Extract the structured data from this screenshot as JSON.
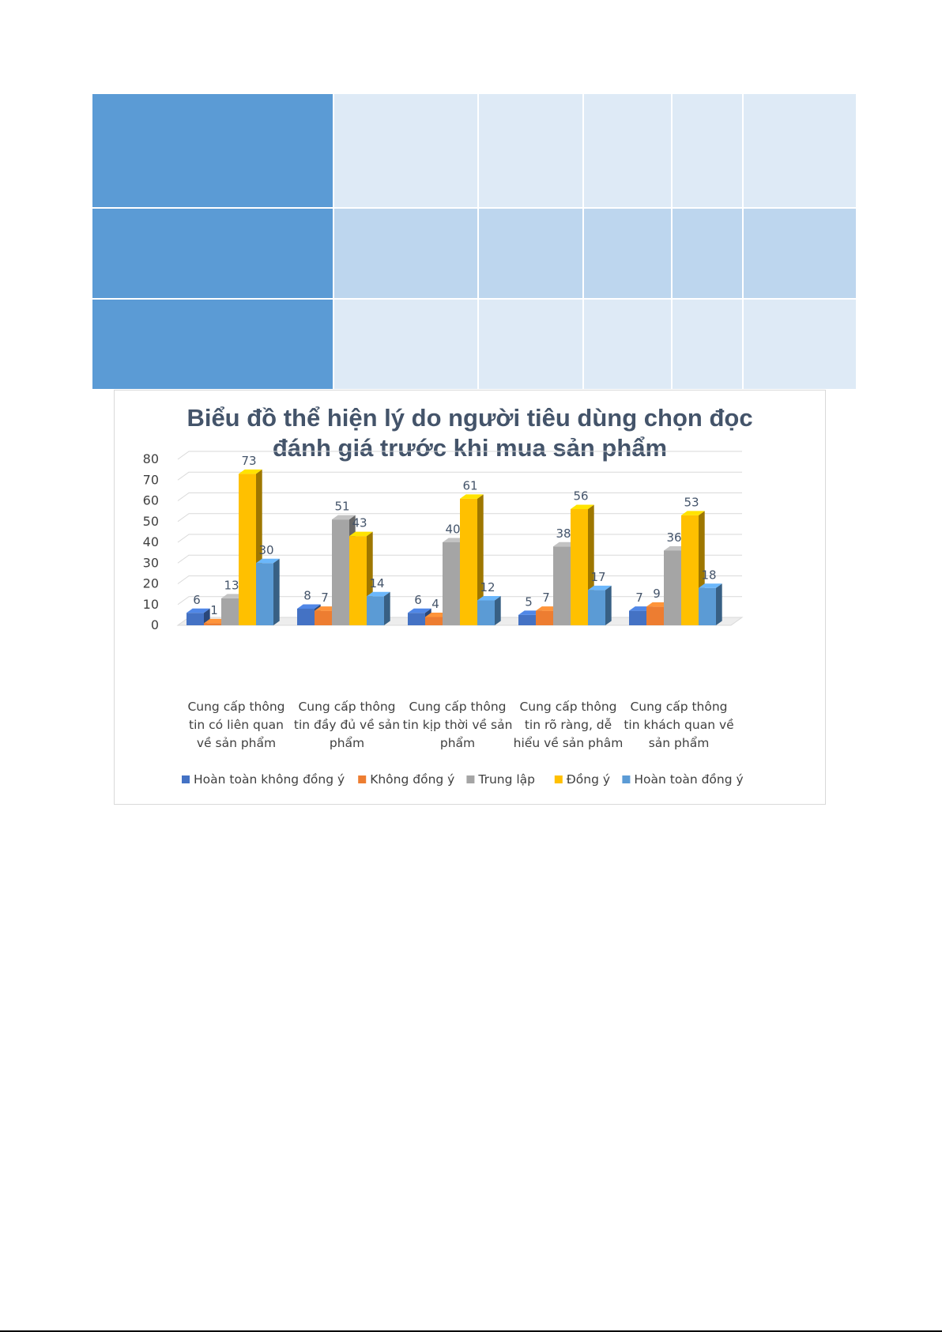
{
  "table": {
    "rows": 3,
    "columns": 6
  },
  "chart_data": {
    "type": "bar",
    "style": "3d-clustered-column",
    "title": "Biểu đồ thể hiện lý do người tiêu dùng chọn đọc đánh giá trước khi mua sản phẩm",
    "categories": [
      [
        "Cung cấp thông",
        "tin có liên quan",
        "về sản phẩm"
      ],
      [
        "Cung cấp thông",
        "tin đầy đủ về sản",
        "phẩm"
      ],
      [
        "Cung cấp thông",
        "tin kịp thời về sản",
        "phẩm"
      ],
      [
        "Cung cấp thông",
        "tin rõ ràng, dễ",
        "hiểu về sản phâm"
      ],
      [
        "Cung cấp thông",
        "tin khách quan về",
        "sản phẩm"
      ]
    ],
    "series": [
      {
        "name": "Hoàn toàn không đồng ý",
        "color": "#4472c4",
        "values": [
          6,
          8,
          6,
          5,
          7
        ]
      },
      {
        "name": "Không đồng ý",
        "color": "#ed7d31",
        "values": [
          1,
          7,
          4,
          7,
          9
        ]
      },
      {
        "name": "Trung lập",
        "color": "#a5a5a5",
        "values": [
          13,
          51,
          40,
          38,
          36
        ]
      },
      {
        "name": "Đồng ý",
        "color": "#ffc000",
        "values": [
          73,
          43,
          61,
          56,
          53
        ]
      },
      {
        "name": "Hoàn toàn đồng ý",
        "color": "#5b9bd5",
        "values": [
          30,
          14,
          12,
          17,
          18
        ]
      }
    ],
    "yticks": [
      0,
      10,
      20,
      30,
      40,
      50,
      60,
      70,
      80
    ],
    "ylim": [
      0,
      80
    ],
    "grid": true,
    "legend": "bottom",
    "data_labels": true
  }
}
